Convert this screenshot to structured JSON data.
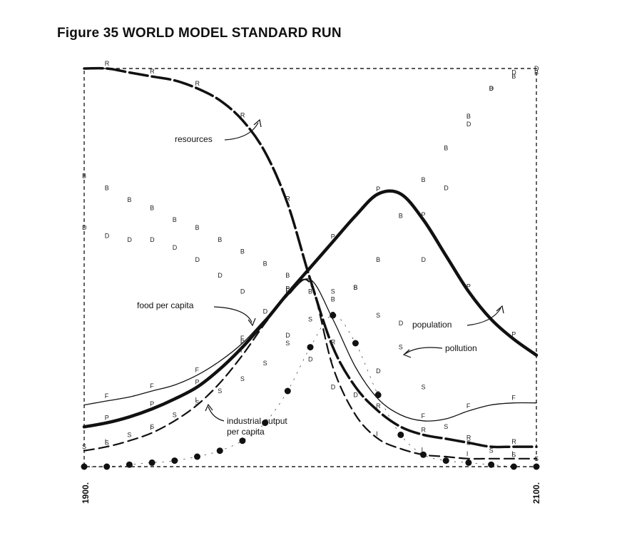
{
  "title": "Figure 35 WORLD MODEL STANDARD RUN",
  "chart_data": {
    "type": "line",
    "x": [
      1900,
      1910,
      1920,
      1930,
      1940,
      1950,
      1960,
      1970,
      1980,
      1990,
      2000,
      2010,
      2020,
      2030,
      2040,
      2050,
      2060,
      2070,
      2080,
      2090,
      2100
    ],
    "xlim": [
      1900,
      2100
    ],
    "ylim": [
      0,
      1
    ],
    "tick_labels": [
      "1900.",
      "2100."
    ],
    "grid": false,
    "series": [
      {
        "name": "resources",
        "marker": "R",
        "style": "thick-dashed",
        "values": [
          1.0,
          1.0,
          0.99,
          0.98,
          0.97,
          0.95,
          0.92,
          0.87,
          0.79,
          0.66,
          0.47,
          0.3,
          0.2,
          0.14,
          0.1,
          0.08,
          0.07,
          0.06,
          0.05,
          0.05,
          0.05
        ]
      },
      {
        "name": "population",
        "marker": "P",
        "style": "thick-solid",
        "values": [
          0.1,
          0.11,
          0.125,
          0.145,
          0.17,
          0.2,
          0.245,
          0.3,
          0.365,
          0.435,
          0.5,
          0.565,
          0.63,
          0.685,
          0.685,
          0.62,
          0.53,
          0.44,
          0.37,
          0.32,
          0.28
        ]
      },
      {
        "name": "food per capita",
        "marker": "F",
        "style": "thin-solid",
        "values": [
          0.155,
          0.165,
          0.175,
          0.19,
          0.205,
          0.23,
          0.265,
          0.31,
          0.37,
          0.43,
          0.47,
          0.37,
          0.25,
          0.17,
          0.13,
          0.115,
          0.12,
          0.14,
          0.155,
          0.16,
          0.16
        ]
      },
      {
        "name": "industrial output per capita",
        "marker": "I",
        "style": "dashed",
        "values": [
          0.04,
          0.05,
          0.065,
          0.085,
          0.115,
          0.155,
          0.21,
          0.28,
          0.36,
          0.43,
          0.46,
          0.25,
          0.13,
          0.07,
          0.045,
          0.03,
          0.025,
          0.02,
          0.02,
          0.02,
          0.02
        ]
      },
      {
        "name": "pollution",
        "marker": "dots",
        "style": "dotted",
        "values": [
          0.0,
          0.0,
          0.005,
          0.01,
          0.015,
          0.025,
          0.04,
          0.065,
          0.11,
          0.19,
          0.3,
          0.38,
          0.31,
          0.18,
          0.08,
          0.03,
          0.015,
          0.01,
          0.005,
          0.0,
          0.0
        ]
      }
    ],
    "marker_series": [
      {
        "marker": "B",
        "values": [
          0.73,
          0.7,
          0.67,
          0.65,
          0.62,
          0.6,
          0.57,
          0.54,
          0.51,
          0.48,
          0.44,
          0.42,
          0.45,
          0.52,
          0.63,
          0.72,
          0.8,
          0.88,
          0.95,
          0.98,
          0.99
        ]
      },
      {
        "marker": "D",
        "values": [
          0.6,
          0.58,
          0.57,
          0.57,
          0.55,
          0.52,
          0.48,
          0.44,
          0.39,
          0.33,
          0.27,
          0.2,
          0.18,
          0.24,
          0.36,
          0.52,
          0.7,
          0.86,
          0.95,
          0.99,
          1.0
        ]
      },
      {
        "marker": "S",
        "values": [
          0.05,
          0.06,
          0.08,
          0.1,
          0.13,
          0.16,
          0.19,
          0.22,
          0.26,
          0.31,
          0.37,
          0.44,
          0.45,
          0.38,
          0.3,
          0.2,
          0.1,
          0.06,
          0.04,
          0.03,
          0.02
        ]
      }
    ],
    "annotations": [
      {
        "text": "resources",
        "target": "resources"
      },
      {
        "text": "food per capita",
        "target": "food per capita"
      },
      {
        "text": "population",
        "target": "population"
      },
      {
        "text": "pollution",
        "target": "pollution"
      },
      {
        "text": "industrial output",
        "target": "industrial output per capita"
      },
      {
        "text": "per capita",
        "target": "industrial output per capita"
      }
    ]
  }
}
